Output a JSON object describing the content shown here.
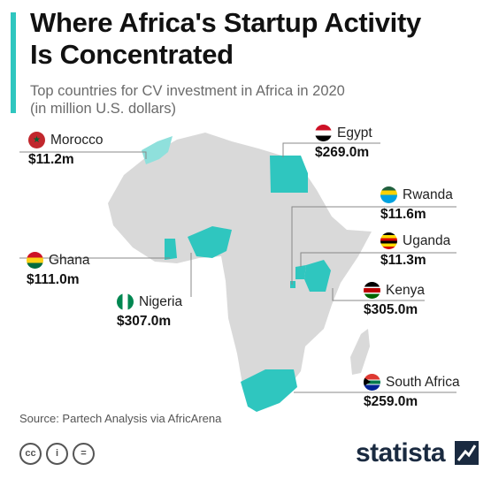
{
  "title_line1": "Where Africa's Startup Activity",
  "title_line2": "Is Concentrated",
  "subtitle_line1": "Top countries for CV investment in Africa in 2020",
  "subtitle_line2": "(in million U.S. dollars)",
  "chart_data": {
    "type": "map",
    "unit": "million U.S. dollars",
    "highlight_color": "#2fc6bf",
    "base_color": "#d9d9d9",
    "countries": [
      {
        "id": "morocco",
        "name": "Morocco",
        "value": 11.2,
        "label": "$11.2m"
      },
      {
        "id": "egypt",
        "name": "Egypt",
        "value": 269.0,
        "label": "$269.0m"
      },
      {
        "id": "rwanda",
        "name": "Rwanda",
        "value": 11.6,
        "label": "$11.6m"
      },
      {
        "id": "uganda",
        "name": "Uganda",
        "value": 11.3,
        "label": "$11.3m"
      },
      {
        "id": "ghana",
        "name": "Ghana",
        "value": 111.0,
        "label": "$111.0m"
      },
      {
        "id": "kenya",
        "name": "Kenya",
        "value": 305.0,
        "label": "$305.0m"
      },
      {
        "id": "nigeria",
        "name": "Nigeria",
        "value": 307.0,
        "label": "$307.0m"
      },
      {
        "id": "south-africa",
        "name": "South Africa",
        "value": 259.0,
        "label": "$259.0m"
      }
    ]
  },
  "source": "Source: Partech Analysis via AfricArena",
  "footer": {
    "license_icons": [
      "cc-icon",
      "by-icon",
      "nd-icon"
    ],
    "license_glyphs": [
      "cc",
      "i",
      "="
    ],
    "brand": "statista"
  }
}
